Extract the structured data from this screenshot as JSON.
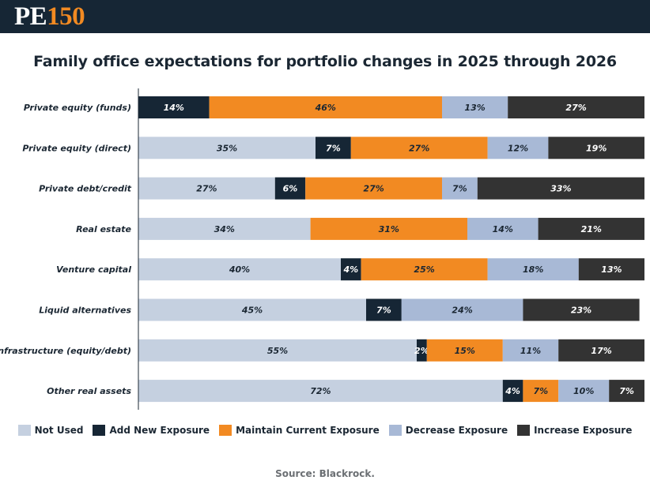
{
  "header": {
    "logo_text_a": "PE",
    "logo_text_b": "150"
  },
  "colors": {
    "header_bg": "#162635",
    "logo_accent": "#f28a22"
  },
  "chart_data": {
    "type": "bar",
    "orientation": "horizontal-stacked-100",
    "title": "Family office expectations for portfolio changes in 2025 through 2026",
    "categories": [
      "Private equity (funds)",
      "Private equity (direct)",
      "Private debt/credit",
      "Real estate",
      "Venture capital",
      "Liquid alternatives",
      "Infrastructure (equity/debt)",
      "Other real assets"
    ],
    "series": [
      {
        "name": "Not Used",
        "color": "#c5d0e0",
        "text_color": "#1b2733",
        "values": [
          0,
          35,
          27,
          34,
          40,
          45,
          55,
          72
        ]
      },
      {
        "name": "Add New Exposure",
        "color": "#162635",
        "text_color": "#ffffff",
        "values": [
          14,
          7,
          6,
          0,
          4,
          7,
          2,
          4
        ]
      },
      {
        "name": "Maintain Current Exposure",
        "color": "#f28a22",
        "text_color": "#1b2733",
        "values": [
          46,
          27,
          27,
          31,
          25,
          0,
          15,
          7
        ]
      },
      {
        "name": "Decrease Exposure",
        "color": "#a8b9d6",
        "text_color": "#1b2733",
        "values": [
          13,
          12,
          7,
          14,
          18,
          24,
          11,
          10
        ]
      },
      {
        "name": "Increase Exposure",
        "color": "#333333",
        "text_color": "#ffffff",
        "values": [
          27,
          19,
          33,
          21,
          13,
          23,
          17,
          7
        ]
      }
    ],
    "value_suffix": "%",
    "xlim": [
      0,
      100
    ],
    "legend_position": "bottom"
  },
  "source": "Source: Blackrock."
}
